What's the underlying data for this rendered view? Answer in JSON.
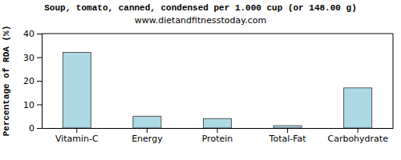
{
  "chart_data": {
    "type": "bar",
    "title": "Soup, tomato, canned, condensed per 1.000 cup (or 148.00 g)",
    "subtitle": "www.dietandfitnesstoday.com",
    "y_label": "Percentage of RDA (%)",
    "categories": [
      "Vitamin-C",
      "Energy",
      "Protein",
      "Total-Fat",
      "Carbohydrate"
    ],
    "values": [
      32,
      5,
      4,
      1,
      17
    ],
    "color": "#add8e6",
    "ylim": [
      0,
      40
    ],
    "yticks": [
      0,
      10,
      20,
      30,
      40
    ],
    "grid": false
  }
}
